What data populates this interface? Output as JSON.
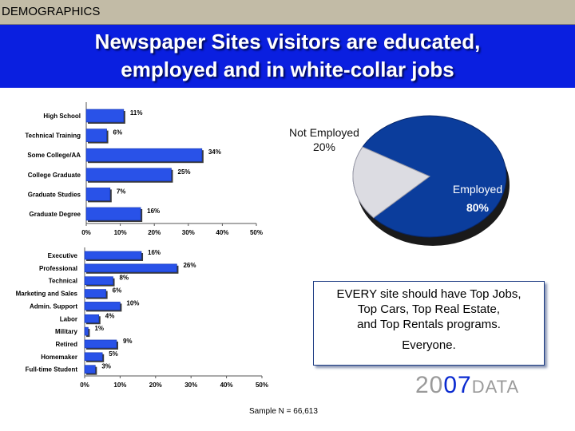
{
  "section_label": "DEMOGRAPHICS",
  "headline": {
    "line1": "Newspaper Sites visitors are educated,",
    "line2": "employed and in white-collar jobs"
  },
  "colors": {
    "bar": "#2952e8",
    "employed": "#0b3d9c",
    "not_employed": "#dcdce2",
    "banner": "#0a1fe0"
  },
  "chart_data": [
    {
      "type": "bar",
      "orientation": "horizontal",
      "categories": [
        "High School",
        "Technical Training",
        "Some College/AA",
        "College Graduate",
        "Graduate Studies",
        "Graduate Degree"
      ],
      "values": [
        11,
        6,
        34,
        25,
        7,
        16
      ],
      "value_labels": [
        "11%",
        "6%",
        "34%",
        "25%",
        "7%",
        "16%"
      ],
      "xlim": [
        0,
        50
      ],
      "ticks": [
        "0%",
        "10%",
        "20%",
        "30%",
        "40%",
        "50%"
      ]
    },
    {
      "type": "bar",
      "orientation": "horizontal",
      "categories": [
        "Executive",
        "Professional",
        "Technical",
        "Marketing and Sales",
        "Admin. Support",
        "Labor",
        "Military",
        "Retired",
        "Homemaker",
        "Full-time Student"
      ],
      "values": [
        16,
        26,
        8,
        6,
        10,
        4,
        1,
        9,
        5,
        3
      ],
      "value_labels": [
        "16%",
        "26%",
        "8%",
        "6%",
        "10%",
        "4%",
        "1%",
        "9%",
        "5%",
        "3%"
      ],
      "xlim": [
        0,
        50
      ],
      "ticks": [
        "0%",
        "10%",
        "20%",
        "30%",
        "40%",
        "50%"
      ]
    },
    {
      "type": "pie",
      "slices": [
        {
          "label": "Employed",
          "value": 80,
          "value_label": "80%"
        },
        {
          "label": "Not Employed",
          "value": 20,
          "value_label": "20%"
        }
      ]
    }
  ],
  "note": {
    "line1": "EVERY site should have Top Jobs,",
    "line2": "Top Cars, Top Real Estate,",
    "line3": "and Top Rentals programs.",
    "line4": "Everyone."
  },
  "logo": {
    "part1": "20",
    "part2": "07",
    "part3": "DATA"
  },
  "sample": "Sample N = 66,613"
}
